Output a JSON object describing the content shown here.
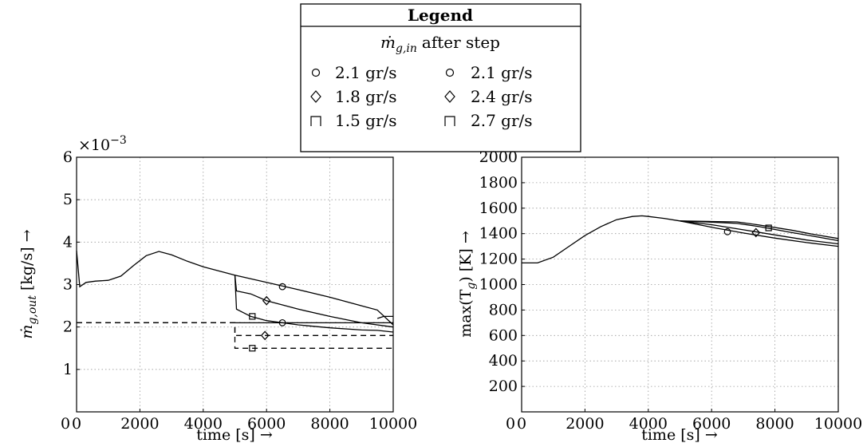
{
  "legend": {
    "title": "Legend",
    "subtitle": "after step",
    "subtitle_symbol": "ṁ",
    "subtitle_sub": "g,in",
    "rows": [
      {
        "marker": "circle",
        "left": "2.1 gr/s",
        "right": "2.1 gr/s"
      },
      {
        "marker": "diamond",
        "left": "1.8 gr/s",
        "right": "2.4 gr/s"
      },
      {
        "marker": "square",
        "left": "1.5 gr/s",
        "right": "2.7 gr/s"
      }
    ]
  },
  "chart_data": [
    {
      "type": "line",
      "ylabel_symbol": "ṁ",
      "ylabel_sub": "g,out",
      "ylabel_unit": "[kg/s] →",
      "xlabel": "time [s] →",
      "exponent_base": "×10",
      "exponent_power": "−3",
      "xlim": [
        0,
        10000
      ],
      "ylim": [
        0,
        6
      ],
      "xticks": [
        0,
        2000,
        4000,
        6000,
        8000,
        10000
      ],
      "xtick_labels": [
        "0",
        "2000",
        "4000",
        "6000",
        "8000",
        "10000"
      ],
      "yticks": [
        1,
        2,
        3,
        4,
        5,
        6
      ],
      "ytick_labels": [
        "1",
        "2",
        "3",
        "4",
        "5",
        "6"
      ],
      "grid": true,
      "common": {
        "x": [
          0,
          100,
          300,
          600,
          1000,
          1400,
          1800,
          2200,
          2600,
          3000,
          3500,
          4000,
          4500,
          5000
        ],
        "y": [
          3.8,
          2.95,
          3.05,
          3.08,
          3.1,
          3.2,
          3.45,
          3.68,
          3.78,
          3.7,
          3.55,
          3.42,
          3.32,
          3.22
        ]
      },
      "series": [
        {
          "marker": "circle",
          "x": [
            5000,
            6000,
            7000,
            8000,
            9000,
            9500,
            10000
          ],
          "y": [
            3.22,
            3.05,
            2.88,
            2.7,
            2.5,
            2.4,
            2.05
          ]
        },
        {
          "marker": "diamond",
          "x": [
            5000,
            5050,
            5500,
            6000,
            7000,
            8000,
            9000,
            10000
          ],
          "y": [
            3.22,
            2.85,
            2.78,
            2.62,
            2.42,
            2.25,
            2.1,
            2.0
          ]
        },
        {
          "marker": "circle",
          "x": [
            5000,
            5050,
            5500,
            6000,
            7000,
            8000,
            9000,
            9500,
            10000
          ],
          "y": [
            3.22,
            2.42,
            2.25,
            2.15,
            2.05,
            1.98,
            1.93,
            1.92,
            1.88
          ]
        },
        {
          "marker": "circle",
          "x": [
            9500,
            9700,
            9850,
            10000
          ],
          "y": [
            2.2,
            2.25,
            2.25,
            2.25
          ]
        }
      ],
      "dashed_series": [
        {
          "marker": "circle",
          "x": [
            0,
            5000,
            5000,
            10000
          ],
          "y": [
            2.1,
            2.1,
            2.1,
            2.1
          ]
        },
        {
          "marker": "diamond",
          "x": [
            0,
            5000,
            5000,
            10000
          ],
          "y": [
            2.1,
            2.1,
            1.8,
            1.8
          ]
        },
        {
          "marker": "square",
          "x": [
            0,
            5000,
            5000,
            10000
          ],
          "y": [
            2.1,
            2.1,
            1.5,
            1.5
          ]
        },
        {
          "marker": "square",
          "x": [
            5000,
            10000
          ],
          "y": [
            2.1,
            2.1
          ]
        }
      ],
      "markers": [
        {
          "shape": "circle",
          "x": 6500,
          "y": 2.95
        },
        {
          "shape": "diamond",
          "x": 6000,
          "y": 2.62
        },
        {
          "shape": "square",
          "x": 5550,
          "y": 2.25
        },
        {
          "shape": "circle",
          "x": 6500,
          "y": 2.1
        },
        {
          "shape": "diamond",
          "x": 5950,
          "y": 1.8
        },
        {
          "shape": "square",
          "x": 5550,
          "y": 1.5
        }
      ]
    },
    {
      "type": "line",
      "ylabel": "max(T",
      "ylabel_sub": "g",
      "ylabel_unit": ") [K] →",
      "xlabel": "time [s] →",
      "xlim": [
        0,
        10000
      ],
      "ylim": [
        0,
        2000
      ],
      "xticks": [
        0,
        2000,
        4000,
        6000,
        8000,
        10000
      ],
      "xtick_labels": [
        "0",
        "2000",
        "4000",
        "6000",
        "8000",
        "10000"
      ],
      "yticks": [
        200,
        400,
        600,
        800,
        1000,
        1200,
        1400,
        1600,
        1800,
        2000
      ],
      "ytick_labels": [
        "200",
        "400",
        "600",
        "800",
        "1000",
        "1200",
        "1400",
        "1600",
        "1800",
        "2000"
      ],
      "grid": true,
      "common": {
        "x": [
          0,
          500,
          1000,
          1500,
          2000,
          2500,
          3000,
          3500,
          3800,
          4000,
          4500,
          5000
        ],
        "y": [
          1170,
          1170,
          1215,
          1300,
          1385,
          1455,
          1510,
          1535,
          1540,
          1535,
          1520,
          1500
        ]
      },
      "series": [
        {
          "marker": "circle",
          "x": [
            5000,
            6000,
            7000,
            8000,
            9000,
            10000
          ],
          "y": [
            1500,
            1450,
            1405,
            1365,
            1330,
            1300
          ]
        },
        {
          "marker": "diamond",
          "x": [
            5000,
            6000,
            7000,
            8000,
            9000,
            10000
          ],
          "y": [
            1500,
            1470,
            1430,
            1390,
            1350,
            1320
          ]
        },
        {
          "marker": "square",
          "x": [
            5000,
            6000,
            6800,
            7500,
            8500,
            9200,
            10000
          ],
          "y": [
            1500,
            1490,
            1480,
            1455,
            1410,
            1380,
            1345
          ]
        },
        {
          "marker": "square",
          "x": [
            5000,
            6000,
            6800,
            7500,
            8500,
            9200,
            10000
          ],
          "y": [
            1500,
            1495,
            1492,
            1468,
            1428,
            1395,
            1362
          ]
        }
      ],
      "markers": [
        {
          "shape": "circle",
          "x": 6500,
          "y": 1415
        },
        {
          "shape": "diamond",
          "x": 7400,
          "y": 1408
        },
        {
          "shape": "square",
          "x": 7800,
          "y": 1445
        }
      ]
    }
  ]
}
